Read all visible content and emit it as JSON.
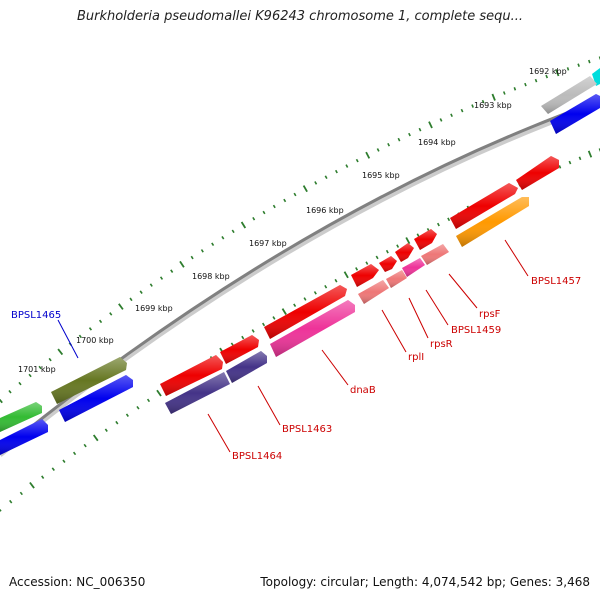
{
  "title": "Burkholderia pseudomallei K96243 chromosome 1, complete sequ...",
  "footer": {
    "accession": "Accession: NC_006350",
    "topology": "Topology: circular; Length: 4,074,542 bp; Genes: 3,468"
  },
  "scale": {
    "ticks": [
      {
        "label": "1692 kbp"
      },
      {
        "label": "1693 kbp"
      },
      {
        "label": "1694 kbp"
      },
      {
        "label": "1695 kbp"
      },
      {
        "label": "1696 kbp"
      },
      {
        "label": "1697 kbp"
      },
      {
        "label": "1698 kbp"
      },
      {
        "label": "1699 kbp"
      },
      {
        "label": "1700 kbp"
      },
      {
        "label": "1701 kbp"
      }
    ]
  },
  "genes": {
    "labels": [
      {
        "text": "BPSL1457",
        "color": "#cc0000"
      },
      {
        "text": "rpsF",
        "color": "#cc0000"
      },
      {
        "text": "BPSL1459",
        "color": "#cc0000"
      },
      {
        "text": "rpsR",
        "color": "#cc0000"
      },
      {
        "text": "rplI",
        "color": "#cc0000"
      },
      {
        "text": "dnaB",
        "color": "#cc0000"
      },
      {
        "text": "BPSL1463",
        "color": "#cc0000"
      },
      {
        "text": "BPSL1464",
        "color": "#cc0000"
      },
      {
        "text": "BPSL1465",
        "color": "#0000cc"
      }
    ]
  },
  "colors": {
    "red": "#ee0000",
    "blue": "#0000ee",
    "purple": "#443388",
    "pink": "#ee3399",
    "salmon": "#ee7777",
    "orange": "#ff9900",
    "olive": "#667722",
    "green": "#33bb33",
    "gray": "#bbbbbb",
    "cyan": "#00dddd",
    "backbone": "#888888",
    "tick": "#2e7d2e"
  }
}
